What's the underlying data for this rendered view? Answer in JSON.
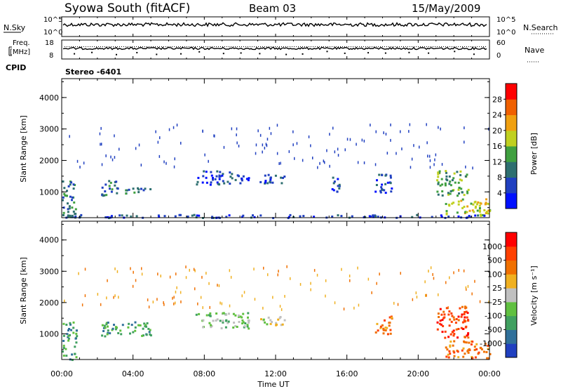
{
  "header": {
    "station": "Syowa South (fitACF)",
    "beam": "Beam 03",
    "date": "15/May/2009"
  },
  "panels": {
    "nsky": {
      "left_label": "N.Sky",
      "right_label": "N.Search",
      "left_ticks": [
        "10^5",
        "10^0"
      ],
      "right_ticks": [
        "10^5",
        "10^0"
      ]
    },
    "freq": {
      "left_label_1": "Freq.",
      "left_label_2": "[MHz]",
      "right_label": "Nave",
      "left_ticks": [
        "18",
        "8"
      ],
      "right_ticks": [
        "60",
        "0"
      ]
    },
    "cpid": {
      "label": "CPID",
      "value": "Stereo -6401"
    }
  },
  "chart_data": [
    {
      "type": "heatmap",
      "name": "power",
      "ylabel": "Slant Range [km]",
      "y_ticks": [
        "4000",
        "3000",
        "2000",
        "1000"
      ],
      "y_tick_values": [
        4000,
        3000,
        2000,
        1000
      ],
      "ylim": [
        180,
        4600
      ],
      "colorbar": {
        "label": "Power [dB]",
        "tick_labels": [
          "28",
          "24",
          "20",
          "16",
          "12",
          "8",
          "4"
        ],
        "colors": [
          "#0010ff",
          "#2040c0",
          "#2e6f70",
          "#40a040",
          "#c0d020",
          "#f0a010",
          "#f06000",
          "#ff0000"
        ]
      },
      "data_regions": [
        {
          "x0": 0.0,
          "x1": 0.8,
          "y0": 200,
          "y1": 1400,
          "level": 2
        },
        {
          "x0": 2.2,
          "x1": 3.2,
          "y0": 900,
          "y1": 1400,
          "level": 2
        },
        {
          "x0": 3.2,
          "x1": 5.0,
          "y0": 950,
          "y1": 1150,
          "level": 2
        },
        {
          "x0": 7.5,
          "x1": 9.5,
          "y0": 1250,
          "y1": 1700,
          "level": 1
        },
        {
          "x0": 9.5,
          "x1": 10.5,
          "y0": 1300,
          "y1": 1600,
          "level": 1
        },
        {
          "x0": 11.0,
          "x1": 12.5,
          "y0": 1300,
          "y1": 1600,
          "level": 1
        },
        {
          "x0": 15.0,
          "x1": 15.6,
          "y0": 1000,
          "y1": 1500,
          "level": 1
        },
        {
          "x0": 17.5,
          "x1": 18.5,
          "y0": 1000,
          "y1": 1600,
          "level": 1
        },
        {
          "x0": 21.0,
          "x1": 22.8,
          "y0": 900,
          "y1": 1700,
          "level": 3
        },
        {
          "x0": 21.5,
          "x1": 24.0,
          "y0": 250,
          "y1": 800,
          "level": 4
        },
        {
          "x0": 0.0,
          "x1": 24.0,
          "y0": 200,
          "y1": 300,
          "level": 1
        }
      ]
    },
    {
      "type": "heatmap",
      "name": "velocity",
      "ylabel": "Slant Range [km]",
      "xlabel": "Time UT",
      "x_ticks": [
        "00:00",
        "04:00",
        "08:00",
        "12:00",
        "16:00",
        "20:00",
        "00:00"
      ],
      "x_tick_values": [
        0,
        4,
        8,
        12,
        16,
        20,
        24
      ],
      "xlim": [
        0,
        24
      ],
      "y_ticks": [
        "4000",
        "3000",
        "2000",
        "1000"
      ],
      "y_tick_values": [
        4000,
        3000,
        2000,
        1000
      ],
      "ylim": [
        180,
        4600
      ],
      "colorbar": {
        "label": "Velocity [m s⁻¹]",
        "tick_labels": [
          "1000",
          "500",
          "100",
          "25",
          "-25",
          "-100",
          "-500",
          "-1000"
        ],
        "colors": [
          "#2040c0",
          "#30709a",
          "#40a060",
          "#60c040",
          "#c0c0c0",
          "#f0b020",
          "#f07000",
          "#ff4000",
          "#ff0000"
        ]
      },
      "data_regions": [
        {
          "x0": 0.0,
          "x1": 0.8,
          "y0": 200,
          "y1": 1400,
          "level": 2
        },
        {
          "x0": 2.2,
          "x1": 5.0,
          "y0": 950,
          "y1": 1400,
          "level": 2
        },
        {
          "x0": 7.5,
          "x1": 10.5,
          "y0": 1200,
          "y1": 1700,
          "level": 3
        },
        {
          "x0": 11.0,
          "x1": 12.5,
          "y0": 1300,
          "y1": 1600,
          "level": 4
        },
        {
          "x0": 17.5,
          "x1": 18.5,
          "y0": 1000,
          "y1": 1600,
          "level": 6
        },
        {
          "x0": 21.0,
          "x1": 22.8,
          "y0": 900,
          "y1": 1900,
          "level": 7
        },
        {
          "x0": 21.5,
          "x1": 24.0,
          "y0": 250,
          "y1": 800,
          "level": 6
        }
      ]
    }
  ]
}
